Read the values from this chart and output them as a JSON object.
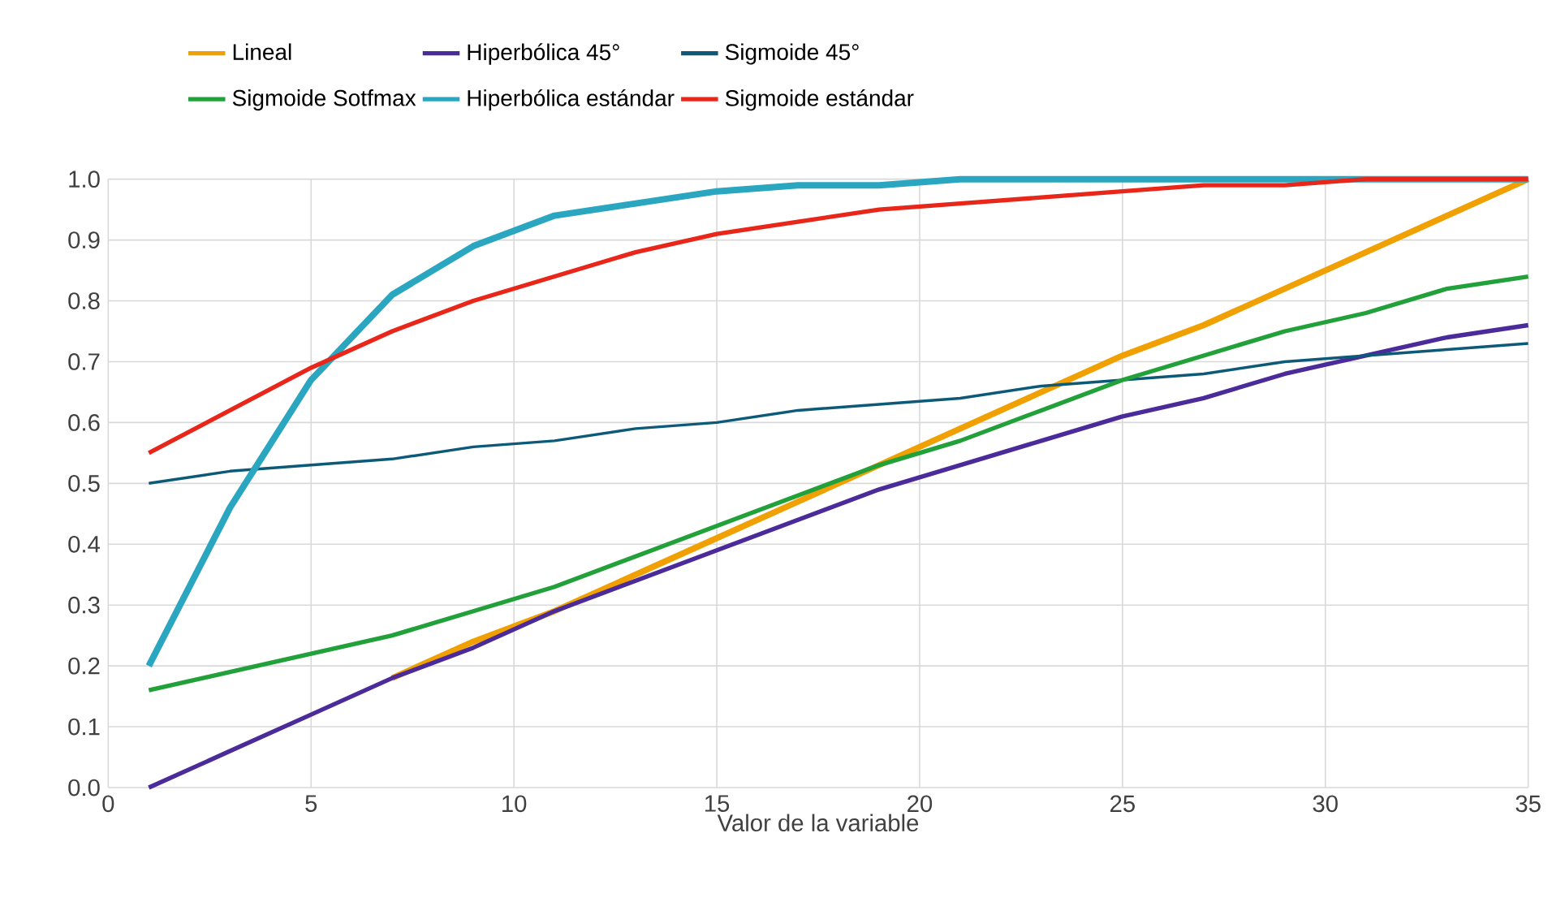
{
  "chart_data": {
    "type": "line",
    "xlabel": "Valor de la variable",
    "x": [
      1,
      3,
      5,
      7,
      9,
      11,
      13,
      15,
      17,
      19,
      21,
      23,
      25,
      27,
      29,
      31,
      33,
      35
    ],
    "xlim": [
      0,
      35
    ],
    "xticks": [
      0,
      5,
      10,
      15,
      20,
      25,
      30,
      35
    ],
    "ylim": [
      0,
      1
    ],
    "yticks": [
      {
        "value": 0,
        "label": "0.0"
      },
      {
        "value": 0.1,
        "label": "0.1"
      },
      {
        "value": 0.2,
        "label": "0.2"
      },
      {
        "value": 0.3,
        "label": "0.3"
      },
      {
        "value": 0.4,
        "label": "0.4"
      },
      {
        "value": 0.5,
        "label": "0.5"
      },
      {
        "value": 0.6,
        "label": "0.6"
      },
      {
        "value": 0.7,
        "label": "0.7"
      },
      {
        "value": 0.8,
        "label": "0.8"
      },
      {
        "value": 0.9,
        "label": "0.9"
      },
      {
        "value": 1,
        "label": "1.0"
      }
    ],
    "grid": true,
    "legend": "top",
    "marker": "none",
    "line_style": "solid",
    "series": [
      {
        "name": "Lineal",
        "color": "#f0a000",
        "values": [
          null,
          null,
          null,
          0.18,
          0.24,
          0.29,
          0.35,
          0.41,
          0.47,
          0.53,
          0.59,
          0.65,
          0.71,
          0.76,
          0.82,
          0.88,
          0.94,
          1
        ]
      },
      {
        "name": "Hiperbólica 45°",
        "color": "#4b2a9a",
        "values": [
          0,
          0.06,
          0.12,
          0.18,
          0.23,
          0.29,
          0.34,
          0.39,
          0.44,
          0.49,
          0.53,
          0.57,
          0.61,
          0.64,
          0.68,
          0.71,
          0.74,
          0.76
        ]
      },
      {
        "name": "Sigmoide 45°",
        "color": "#0d5a78",
        "values": [
          0.5,
          0.52,
          0.53,
          0.54,
          0.56,
          0.57,
          0.59,
          0.6,
          0.62,
          0.63,
          0.64,
          0.66,
          0.67,
          0.68,
          0.7,
          0.71,
          0.72,
          0.73
        ]
      },
      {
        "name": "Sigmoide Sotfmax",
        "color": "#22a03a",
        "values": [
          0.16,
          0.19,
          0.22,
          0.25,
          0.29,
          0.33,
          0.38,
          0.43,
          0.48,
          0.53,
          0.57,
          0.62,
          0.67,
          0.71,
          0.75,
          0.78,
          0.82,
          0.84
        ]
      },
      {
        "name": "Hiperbólica estándar",
        "color": "#2aa6c0",
        "values": [
          0.2,
          0.46,
          0.67,
          0.81,
          0.89,
          0.94,
          0.96,
          0.98,
          0.99,
          0.99,
          1,
          1,
          1,
          1,
          1,
          1,
          1,
          1
        ]
      },
      {
        "name": "Sigmoide estándar",
        "color": "#e8261a",
        "values": [
          0.55,
          0.62,
          0.69,
          0.75,
          0.8,
          0.84,
          0.88,
          0.91,
          0.93,
          0.95,
          0.96,
          0.97,
          0.98,
          0.99,
          0.99,
          1,
          1,
          1
        ]
      }
    ]
  }
}
